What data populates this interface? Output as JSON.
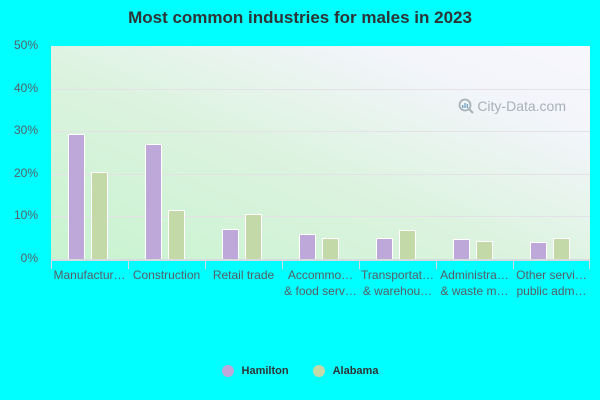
{
  "title": "Most common industries for males in 2023",
  "watermark": "City-Data.com",
  "colors": {
    "hamilton": "#bda8d9",
    "alabama": "#c4d9a8",
    "background": "#00ffff"
  },
  "legend": [
    {
      "label": "Hamilton",
      "color": "#bda8d9"
    },
    {
      "label": "Alabama",
      "color": "#c4d9a8"
    }
  ],
  "y_ticks": [
    "0%",
    "10%",
    "20%",
    "30%",
    "40%",
    "50%"
  ],
  "x_labels": [
    [
      "Manufactur…",
      ""
    ],
    [
      "Construction",
      ""
    ],
    [
      "Retail trade",
      ""
    ],
    [
      "Accommo…",
      "& food serv…"
    ],
    [
      "Transportat…",
      "& warehou…"
    ],
    [
      "Administra…",
      "& waste m…"
    ],
    [
      "Other servi…",
      "public adm…"
    ]
  ],
  "chart_data": {
    "type": "bar",
    "title": "Most common industries for males in 2023",
    "xlabel": "",
    "ylabel": "",
    "ylim": [
      0,
      50
    ],
    "y_ticks": [
      0,
      10,
      20,
      30,
      40,
      50
    ],
    "y_tick_format": "percent",
    "grid": true,
    "legend_position": "bottom",
    "categories": [
      "Manufacturing",
      "Construction",
      "Retail trade",
      "Accommodation & food services",
      "Transportation & warehousing",
      "Administrative & waste management",
      "Other services, except public administration"
    ],
    "series": [
      {
        "name": "Hamilton",
        "color": "#bda8d9",
        "values": [
          29.4,
          27.0,
          7.1,
          5.9,
          4.9,
          4.7,
          4.0
        ]
      },
      {
        "name": "Alabama",
        "color": "#c4d9a8",
        "values": [
          20.5,
          11.5,
          10.6,
          4.9,
          6.8,
          4.2,
          4.9
        ]
      }
    ]
  }
}
